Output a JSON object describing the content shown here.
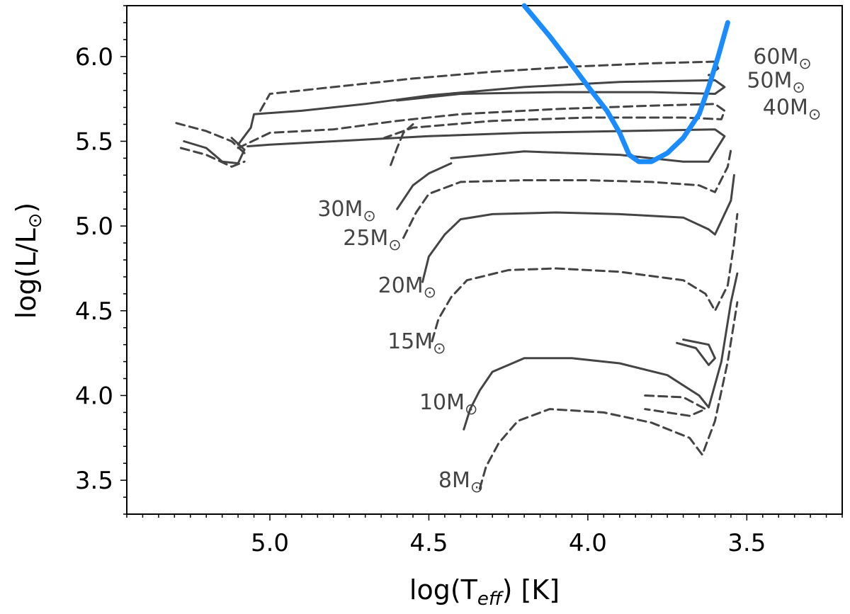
{
  "chart_data": {
    "type": "line",
    "xlabel": "log(T",
    "xlabel_sub": "eff",
    "xlabel_suffix": ") [K]",
    "ylabel": "log(L/L",
    "ylabel_suffix": ")",
    "sun_symbol": "⊙",
    "xlim": [
      5.45,
      3.2
    ],
    "ylim": [
      3.3,
      6.3
    ],
    "x_inverted": true,
    "grid": false,
    "xticks": [
      "5.0",
      "4.5",
      "4.0",
      "3.5"
    ],
    "yticks": [
      "3.5",
      "4.0",
      "4.5",
      "5.0",
      "5.5",
      "6.0"
    ],
    "colors": {
      "tracks": "#444444",
      "boundary": "#1a8cff",
      "labels": "#444444"
    },
    "boundary_curve": {
      "color": "#1a8cff",
      "points": [
        [
          4.2,
          6.3
        ],
        [
          4.12,
          6.12
        ],
        [
          4.05,
          5.95
        ],
        [
          3.99,
          5.8
        ],
        [
          3.94,
          5.68
        ],
        [
          3.9,
          5.55
        ],
        [
          3.87,
          5.42
        ],
        [
          3.84,
          5.38
        ],
        [
          3.8,
          5.38
        ],
        [
          3.75,
          5.43
        ],
        [
          3.7,
          5.52
        ],
        [
          3.65,
          5.66
        ],
        [
          3.62,
          5.82
        ],
        [
          3.59,
          6.0
        ],
        [
          3.56,
          6.2
        ]
      ]
    },
    "series": [
      {
        "label": "60M",
        "style": "dashed",
        "label_at": [
          3.48,
          6.0
        ],
        "tracks": [
          [
            [
              5.03,
              5.68
            ],
            [
              5.0,
              5.78
            ],
            [
              4.8,
              5.82
            ],
            [
              4.55,
              5.87
            ],
            [
              4.3,
              5.91
            ],
            [
              4.05,
              5.94
            ],
            [
              3.8,
              5.96
            ],
            [
              3.6,
              5.97
            ],
            [
              3.59,
              5.93
            ],
            [
              3.62,
              5.89
            ]
          ],
          [
            [
              5.08,
              5.43
            ],
            [
              5.12,
              5.5
            ],
            [
              5.2,
              5.56
            ],
            [
              5.3,
              5.61
            ]
          ]
        ]
      },
      {
        "label": "50M",
        "style": "solid",
        "label_at": [
          3.5,
          5.86
        ],
        "tracks": [
          [
            [
              5.1,
              5.48
            ],
            [
              5.06,
              5.58
            ],
            [
              5.05,
              5.66
            ],
            [
              4.9,
              5.68
            ],
            [
              4.7,
              5.72
            ],
            [
              4.5,
              5.77
            ],
            [
              4.2,
              5.82
            ],
            [
              3.9,
              5.85
            ],
            [
              3.6,
              5.86
            ],
            [
              3.57,
              5.82
            ],
            [
              3.6,
              5.78
            ],
            [
              3.8,
              5.79
            ],
            [
              4.1,
              5.79
            ],
            [
              4.4,
              5.78
            ],
            [
              4.6,
              5.74
            ]
          ],
          [
            [
              5.27,
              5.5
            ],
            [
              5.2,
              5.46
            ],
            [
              5.15,
              5.38
            ],
            [
              5.1,
              5.37
            ],
            [
              5.08,
              5.45
            ],
            [
              5.12,
              5.52
            ]
          ]
        ]
      },
      {
        "label": "40M",
        "style": "dashed",
        "label_at": [
          3.45,
          5.7
        ],
        "tracks": [
          [
            [
              5.1,
              5.46
            ],
            [
              5.0,
              5.55
            ],
            [
              4.8,
              5.57
            ],
            [
              4.6,
              5.62
            ],
            [
              4.4,
              5.66
            ],
            [
              4.1,
              5.69
            ],
            [
              3.8,
              5.71
            ],
            [
              3.6,
              5.72
            ],
            [
              3.57,
              5.68
            ],
            [
              3.58,
              5.63
            ],
            [
              3.7,
              5.64
            ],
            [
              4.0,
              5.64
            ],
            [
              4.3,
              5.62
            ],
            [
              4.55,
              5.58
            ],
            [
              4.64,
              5.52
            ]
          ],
          [
            [
              5.28,
              5.46
            ],
            [
              5.2,
              5.42
            ],
            [
              5.12,
              5.35
            ],
            [
              5.08,
              5.38
            ]
          ]
        ]
      },
      {
        "label": "30M",
        "style": "solid",
        "label_at": [
          4.85,
          5.1
        ],
        "tracks": [
          [
            [
              5.07,
              5.47
            ],
            [
              5.0,
              5.48
            ],
            [
              4.8,
              5.5
            ],
            [
              4.5,
              5.53
            ],
            [
              4.2,
              5.55
            ],
            [
              3.9,
              5.56
            ],
            [
              3.6,
              5.57
            ],
            [
              3.57,
              5.53
            ],
            [
              3.62,
              5.38
            ],
            [
              3.7,
              5.38
            ],
            [
              3.9,
              5.42
            ],
            [
              4.2,
              5.44
            ],
            [
              4.43,
              5.4
            ]
          ],
          [
            [
              4.6,
              5.1
            ],
            [
              4.55,
              5.24
            ],
            [
              4.5,
              5.31
            ],
            [
              4.43,
              5.37
            ]
          ]
        ]
      },
      {
        "label": "25M",
        "style": "dashed",
        "label_at": [
          4.77,
          4.93
        ],
        "tracks": [
          [
            [
              4.58,
              4.93
            ],
            [
              4.54,
              5.08
            ],
            [
              4.5,
              5.19
            ],
            [
              4.4,
              5.26
            ],
            [
              4.2,
              5.27
            ],
            [
              4.0,
              5.27
            ],
            [
              3.8,
              5.26
            ],
            [
              3.65,
              5.24
            ],
            [
              3.6,
              5.2
            ],
            [
              3.56,
              5.35
            ],
            [
              3.55,
              5.45
            ]
          ],
          [
            [
              4.62,
              5.36
            ],
            [
              4.6,
              5.46
            ],
            [
              4.58,
              5.55
            ],
            [
              4.55,
              5.6
            ]
          ]
        ]
      },
      {
        "label": "20M",
        "style": "solid",
        "label_at": [
          4.66,
          4.65
        ],
        "tracks": [
          [
            [
              4.52,
              4.67
            ],
            [
              4.5,
              4.82
            ],
            [
              4.45,
              4.95
            ],
            [
              4.4,
              5.04
            ],
            [
              4.3,
              5.07
            ],
            [
              4.1,
              5.08
            ],
            [
              3.9,
              5.07
            ],
            [
              3.7,
              5.05
            ],
            [
              3.62,
              4.98
            ],
            [
              3.6,
              4.95
            ],
            [
              3.55,
              5.15
            ],
            [
              3.54,
              5.3
            ]
          ]
        ]
      },
      {
        "label": "15M",
        "style": "dashed",
        "label_at": [
          4.63,
          4.32
        ],
        "tracks": [
          [
            [
              4.49,
              4.32
            ],
            [
              4.47,
              4.45
            ],
            [
              4.43,
              4.58
            ],
            [
              4.38,
              4.68
            ],
            [
              4.25,
              4.74
            ],
            [
              4.1,
              4.75
            ],
            [
              3.9,
              4.73
            ],
            [
              3.7,
              4.68
            ],
            [
              3.63,
              4.6
            ],
            [
              3.6,
              4.5
            ],
            [
              3.56,
              4.65
            ],
            [
              3.54,
              4.9
            ],
            [
              3.53,
              5.07
            ]
          ]
        ]
      },
      {
        "label": "10M",
        "style": "solid",
        "label_at": [
          4.53,
          3.96
        ],
        "tracks": [
          [
            [
              4.39,
              3.8
            ],
            [
              4.37,
              3.92
            ],
            [
              4.34,
              4.03
            ],
            [
              4.3,
              4.14
            ],
            [
              4.2,
              4.22
            ],
            [
              4.05,
              4.22
            ],
            [
              3.9,
              4.19
            ],
            [
              3.75,
              4.12
            ],
            [
              3.65,
              4.0
            ],
            [
              3.62,
              3.93
            ],
            [
              3.58,
              4.2
            ],
            [
              3.55,
              4.55
            ],
            [
              3.53,
              4.72
            ]
          ],
          [
            [
              3.7,
              4.33
            ],
            [
              3.62,
              4.3
            ],
            [
              3.6,
              4.22
            ],
            [
              3.62,
              4.18
            ],
            [
              3.66,
              4.28
            ],
            [
              3.72,
              4.31
            ]
          ]
        ]
      },
      {
        "label": "8M",
        "style": "dashed",
        "label_at": [
          4.47,
          3.5
        ],
        "tracks": [
          [
            [
              4.34,
              3.45
            ],
            [
              4.32,
              3.58
            ],
            [
              4.28,
              3.72
            ],
            [
              4.22,
              3.85
            ],
            [
              4.12,
              3.92
            ],
            [
              3.95,
              3.9
            ],
            [
              3.8,
              3.84
            ],
            [
              3.68,
              3.75
            ],
            [
              3.64,
              3.65
            ],
            [
              3.6,
              3.85
            ],
            [
              3.56,
              4.2
            ],
            [
              3.53,
              4.55
            ]
          ],
          [
            [
              3.82,
              4.0
            ],
            [
              3.7,
              3.99
            ],
            [
              3.63,
              3.92
            ],
            [
              3.68,
              3.88
            ],
            [
              3.82,
              3.92
            ]
          ]
        ]
      }
    ]
  }
}
